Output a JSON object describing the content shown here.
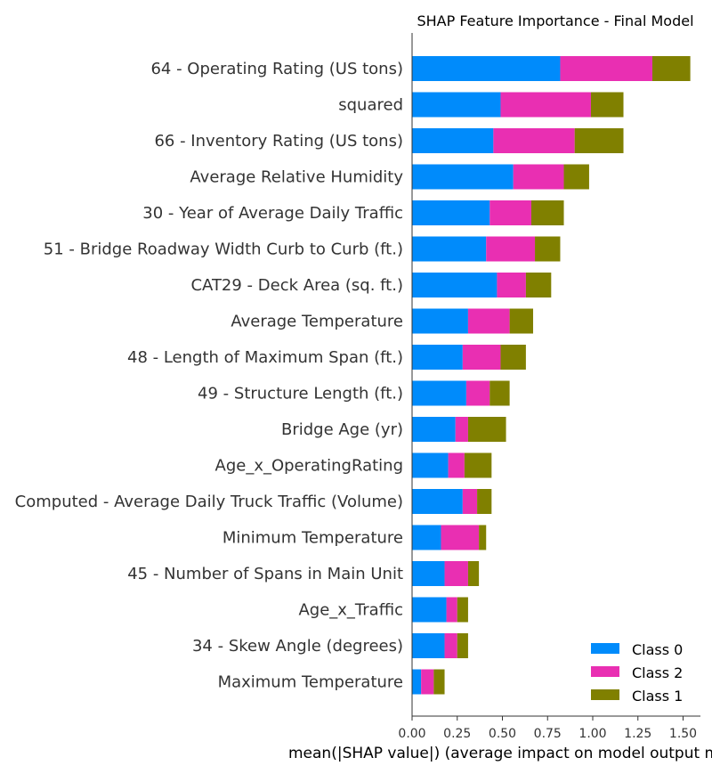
{
  "chart_data": {
    "type": "bar",
    "orientation": "horizontal",
    "stacked": true,
    "title": "SHAP Feature Importance - Final Model",
    "xlabel": "mean(|SHAP value|) (average impact on model output magnitude)",
    "ylabel": "",
    "xlim": [
      0,
      1.6
    ],
    "xticks": [
      "0.00",
      "0.25",
      "0.50",
      "0.75",
      "1.00",
      "1.25",
      "1.50"
    ],
    "grid": false,
    "legend_position": "bottom-right",
    "categories": [
      "64 - Operating Rating (US tons)",
      "squared",
      "66 - Inventory Rating (US tons)",
      "Average Relative Humidity",
      "30 - Year of Average Daily Traffic",
      "51 - Bridge Roadway Width Curb to Curb (ft.)",
      "CAT29 - Deck Area (sq. ft.)",
      "Average Temperature",
      "48 - Length of Maximum Span (ft.)",
      "49 - Structure Length (ft.)",
      "Bridge Age (yr)",
      "Age_x_OperatingRating",
      "Computed - Average Daily Truck Traffic (Volume)",
      "Minimum Temperature",
      "45 - Number of Spans in Main Unit",
      "Age_x_Traffic",
      "34 - Skew Angle (degrees)",
      "Maximum Temperature"
    ],
    "series": [
      {
        "name": "Class 0",
        "color": "#008bfb",
        "values": [
          0.82,
          0.49,
          0.45,
          0.56,
          0.43,
          0.41,
          0.47,
          0.31,
          0.28,
          0.3,
          0.24,
          0.2,
          0.28,
          0.16,
          0.18,
          0.19,
          0.18,
          0.05
        ]
      },
      {
        "name": "Class 2",
        "color": "#e92fb2",
        "values": [
          0.51,
          0.5,
          0.45,
          0.28,
          0.23,
          0.27,
          0.16,
          0.23,
          0.21,
          0.13,
          0.07,
          0.09,
          0.08,
          0.21,
          0.13,
          0.06,
          0.07,
          0.07
        ]
      },
      {
        "name": "Class 1",
        "color": "#808000",
        "values": [
          0.21,
          0.18,
          0.27,
          0.14,
          0.18,
          0.14,
          0.14,
          0.13,
          0.14,
          0.11,
          0.21,
          0.15,
          0.08,
          0.04,
          0.06,
          0.06,
          0.06,
          0.06
        ]
      }
    ],
    "legend_order": [
      "Class 0",
      "Class 2",
      "Class 1"
    ]
  }
}
